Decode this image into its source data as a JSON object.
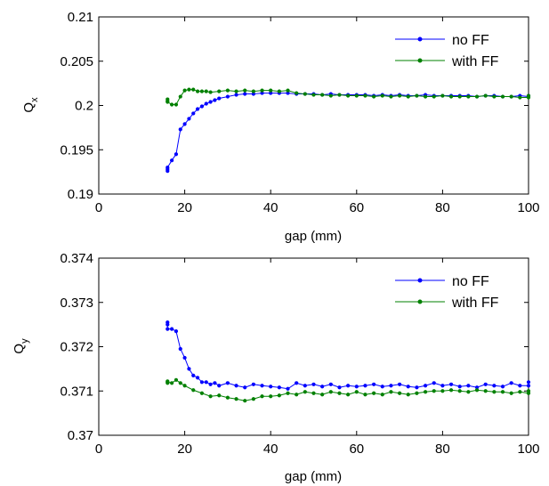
{
  "chart_data": [
    {
      "type": "line",
      "xlabel": "gap (mm)",
      "ylabel": "Q",
      "ylabel_sub": "x",
      "xlim": [
        0,
        100
      ],
      "ylim": [
        0.19,
        0.21
      ],
      "xticks": [
        0,
        20,
        40,
        60,
        80,
        100
      ],
      "xtick_labels": [
        "0",
        "20",
        "40",
        "60",
        "80",
        "100"
      ],
      "yticks": [
        0.19,
        0.195,
        0.2,
        0.205,
        0.21
      ],
      "ytick_labels": [
        "0.19",
        "0.195",
        "0.2",
        "0.205",
        "0.21"
      ],
      "grid": false,
      "legend_position": "top-right",
      "series": [
        {
          "name": "no FF",
          "color": "#0000ff",
          "x": [
            16,
            16,
            16,
            17,
            18,
            19,
            20,
            21,
            22,
            23,
            24,
            25,
            26,
            27,
            28,
            30,
            32,
            34,
            36,
            38,
            40,
            42,
            44,
            46,
            48,
            50,
            52,
            54,
            56,
            58,
            60,
            62,
            64,
            66,
            68,
            70,
            72,
            74,
            76,
            78,
            80,
            82,
            84,
            86,
            88,
            90,
            92,
            94,
            96,
            98,
            100,
            100
          ],
          "y": [
            0.1926,
            0.1928,
            0.193,
            0.1938,
            0.1945,
            0.1973,
            0.1979,
            0.1985,
            0.1991,
            0.1996,
            0.1999,
            0.2002,
            0.2004,
            0.2006,
            0.2008,
            0.201,
            0.2012,
            0.2013,
            0.2013,
            0.2014,
            0.2014,
            0.2014,
            0.2014,
            0.2013,
            0.2013,
            0.2013,
            0.2012,
            0.2013,
            0.2012,
            0.2012,
            0.2012,
            0.2012,
            0.2011,
            0.2012,
            0.2011,
            0.2012,
            0.2011,
            0.2011,
            0.2012,
            0.2011,
            0.2011,
            0.2011,
            0.2011,
            0.2011,
            0.201,
            0.2011,
            0.2011,
            0.201,
            0.201,
            0.2011,
            0.201,
            0.2011
          ]
        },
        {
          "name": "with FF",
          "color": "#008000",
          "x": [
            16,
            16,
            16,
            17,
            18,
            19,
            20,
            21,
            22,
            23,
            24,
            25,
            26,
            28,
            30,
            32,
            34,
            36,
            38,
            40,
            42,
            44,
            46,
            48,
            50,
            52,
            54,
            56,
            58,
            60,
            62,
            64,
            66,
            68,
            70,
            72,
            74,
            76,
            78,
            80,
            82,
            84,
            86,
            88,
            90,
            92,
            94,
            96,
            98,
            100,
            100
          ],
          "y": [
            0.2005,
            0.2007,
            0.2004,
            0.2001,
            0.2001,
            0.201,
            0.2017,
            0.2018,
            0.2018,
            0.2016,
            0.2016,
            0.2016,
            0.2015,
            0.2016,
            0.2017,
            0.2016,
            0.2017,
            0.2016,
            0.2017,
            0.2017,
            0.2016,
            0.2017,
            0.2014,
            0.2013,
            0.2012,
            0.2012,
            0.2011,
            0.2012,
            0.2011,
            0.2011,
            0.2011,
            0.201,
            0.2011,
            0.201,
            0.2011,
            0.201,
            0.2011,
            0.201,
            0.201,
            0.2011,
            0.201,
            0.201,
            0.201,
            0.201,
            0.2011,
            0.201,
            0.201,
            0.201,
            0.2009,
            0.2009,
            0.2011
          ]
        }
      ]
    },
    {
      "type": "line",
      "xlabel": "gap (mm)",
      "ylabel": "Q",
      "ylabel_sub": "y",
      "xlim": [
        0,
        100
      ],
      "ylim": [
        0.37,
        0.374
      ],
      "xticks": [
        0,
        20,
        40,
        60,
        80,
        100
      ],
      "xtick_labels": [
        "0",
        "20",
        "40",
        "60",
        "80",
        "100"
      ],
      "yticks": [
        0.37,
        0.371,
        0.372,
        0.373,
        0.374
      ],
      "ytick_labels": [
        "0.37",
        "0.371",
        "0.372",
        "0.373",
        "0.374"
      ],
      "grid": false,
      "legend_position": "top-right",
      "series": [
        {
          "name": "no FF",
          "color": "#0000ff",
          "x": [
            16,
            16,
            16,
            17,
            18,
            19,
            20,
            21,
            22,
            23,
            24,
            25,
            26,
            27,
            28,
            30,
            32,
            34,
            36,
            38,
            40,
            42,
            44,
            46,
            48,
            50,
            52,
            54,
            56,
            58,
            60,
            62,
            64,
            66,
            68,
            70,
            72,
            74,
            76,
            78,
            80,
            82,
            84,
            86,
            88,
            90,
            92,
            94,
            96,
            98,
            100,
            100
          ],
          "y": [
            0.3725,
            0.37255,
            0.3724,
            0.3724,
            0.37235,
            0.37195,
            0.37175,
            0.3715,
            0.37135,
            0.3713,
            0.3712,
            0.3712,
            0.37115,
            0.37118,
            0.37112,
            0.37118,
            0.37112,
            0.37108,
            0.37115,
            0.37112,
            0.3711,
            0.37108,
            0.37105,
            0.37118,
            0.37112,
            0.37115,
            0.3711,
            0.37115,
            0.37108,
            0.37112,
            0.3711,
            0.37112,
            0.37115,
            0.3711,
            0.37112,
            0.37115,
            0.3711,
            0.37108,
            0.37112,
            0.37118,
            0.37112,
            0.37115,
            0.3711,
            0.37112,
            0.37108,
            0.37115,
            0.37112,
            0.3711,
            0.37118,
            0.37112,
            0.37112,
            0.3712
          ]
        },
        {
          "name": "with FF",
          "color": "#008000",
          "x": [
            16,
            16,
            16,
            17,
            18,
            19,
            20,
            22,
            24,
            26,
            28,
            30,
            32,
            34,
            36,
            38,
            40,
            42,
            44,
            46,
            48,
            50,
            52,
            54,
            56,
            58,
            60,
            62,
            64,
            66,
            68,
            70,
            72,
            74,
            76,
            78,
            80,
            82,
            84,
            86,
            88,
            90,
            92,
            94,
            96,
            98,
            100,
            100
          ],
          "y": [
            0.37118,
            0.37122,
            0.3712,
            0.37118,
            0.37125,
            0.37118,
            0.37112,
            0.37102,
            0.37095,
            0.37088,
            0.3709,
            0.37085,
            0.37082,
            0.37078,
            0.37082,
            0.37088,
            0.37088,
            0.3709,
            0.37095,
            0.37092,
            0.37098,
            0.37095,
            0.37092,
            0.37098,
            0.37095,
            0.37092,
            0.37098,
            0.37092,
            0.37095,
            0.37092,
            0.37098,
            0.37095,
            0.37092,
            0.37095,
            0.37098,
            0.371,
            0.371,
            0.37102,
            0.371,
            0.37098,
            0.37102,
            0.371,
            0.37098,
            0.37098,
            0.37095,
            0.37098,
            0.37095,
            0.371
          ]
        }
      ]
    }
  ]
}
